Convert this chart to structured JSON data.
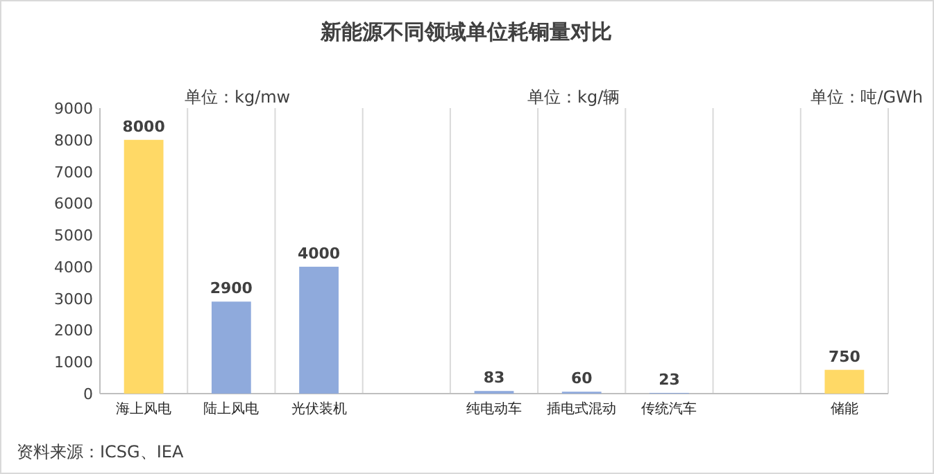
{
  "chart_data": {
    "type": "bar",
    "title": "新能源不同领域单位耗铜量对比",
    "categories": [
      "海上风电",
      "陆上风电",
      "光伏装机",
      null,
      "纯电动车",
      "插电式混动",
      "传统汽车",
      null,
      "储能"
    ],
    "values": [
      8000,
      2900,
      4000,
      null,
      83,
      60,
      23,
      null,
      750
    ],
    "colors": [
      "#ffd966",
      "#8faadc",
      "#8faadc",
      null,
      "#8faadc",
      "#8faadc",
      "#8faadc",
      null,
      "#ffd966"
    ],
    "ylim": [
      0,
      9000
    ],
    "yticks": [
      0,
      1000,
      2000,
      3000,
      4000,
      5000,
      6000,
      7000,
      8000,
      9000
    ],
    "grid": "x",
    "data_labels": true,
    "annotations": [
      "单位：kg/mw",
      "单位：kg/辆",
      "单位：吨/GWh",
      "资料来源：ICSG、IEA"
    ]
  }
}
